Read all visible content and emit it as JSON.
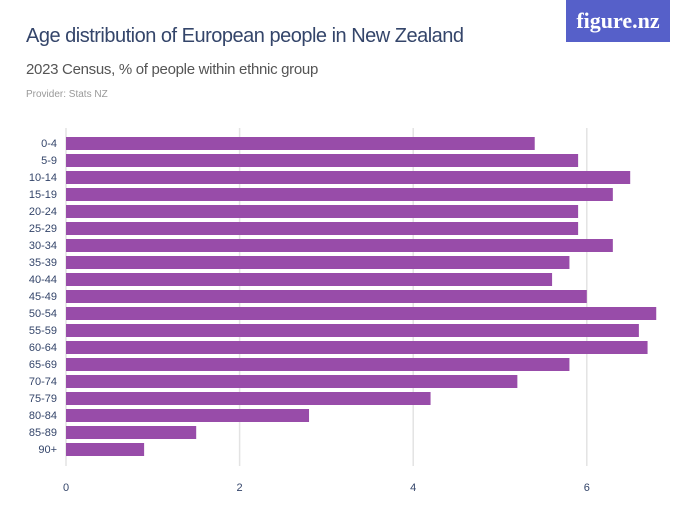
{
  "header": {
    "title": "Age distribution of European people in New Zealand",
    "subtitle": "2023 Census, % of people within ethnic group",
    "provider": "Provider: Stats NZ",
    "logo": "figure.nz"
  },
  "colors": {
    "bar": "#984ca9",
    "grid": "#e3e3e3",
    "axis_text": "#34456a",
    "logo_bg": "#5660c9"
  },
  "chart_data": {
    "type": "bar",
    "orientation": "horizontal",
    "categories": [
      "0-4",
      "5-9",
      "10-14",
      "15-19",
      "20-24",
      "25-29",
      "30-34",
      "35-39",
      "40-44",
      "45-49",
      "50-54",
      "55-59",
      "60-64",
      "65-69",
      "70-74",
      "75-79",
      "80-84",
      "85-89",
      "90+"
    ],
    "values": [
      5.4,
      5.9,
      6.5,
      6.3,
      5.9,
      5.9,
      6.3,
      5.8,
      5.6,
      6.0,
      6.8,
      6.6,
      6.7,
      5.8,
      5.2,
      4.2,
      2.8,
      1.5,
      0.9
    ],
    "xticks": [
      0,
      2,
      4,
      6
    ],
    "xlim": [
      0,
      7
    ],
    "grid": true,
    "title": "Age distribution of European people in New Zealand"
  }
}
